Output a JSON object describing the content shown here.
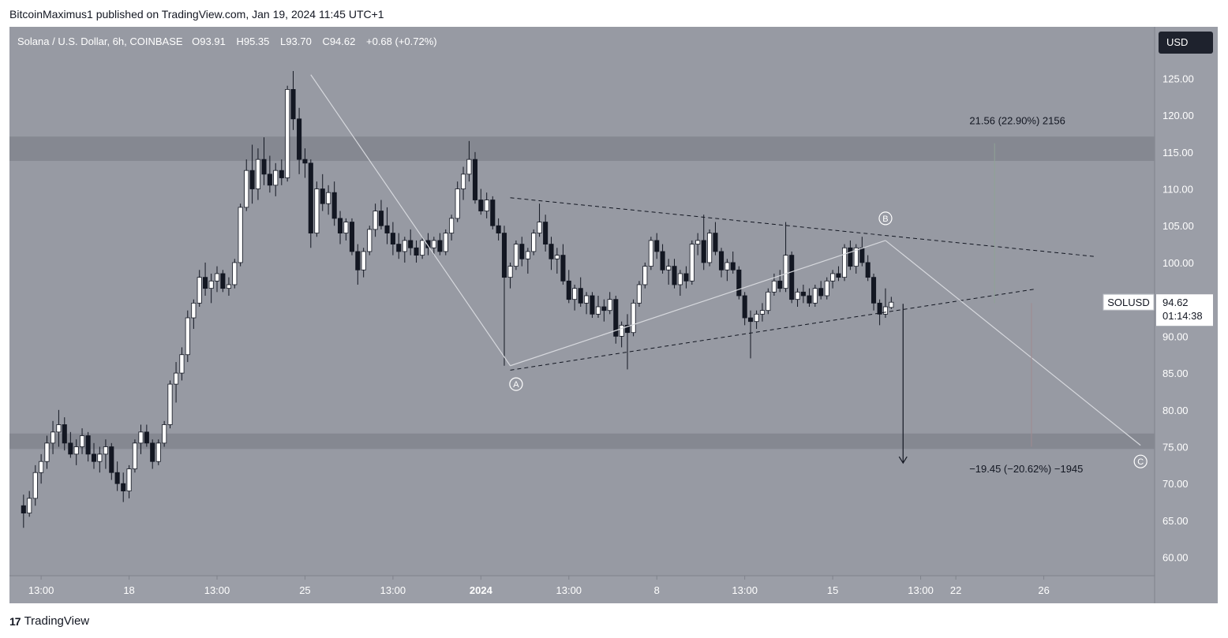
{
  "publisher": "BitcoinMaximus1 published on TradingView.com, Jan 19, 2024 11:45 UTC+1",
  "header": {
    "symbol": "Solana / U.S. Dollar, 6h, COINBASE",
    "open_key": "O",
    "open": "93.91",
    "high_key": "H",
    "high": "95.35",
    "low_key": "L",
    "low": "93.70",
    "close_key": "C",
    "close": "94.62",
    "change": "+0.68 (+0.72%)"
  },
  "currency": "USD",
  "footer": {
    "logo_mark": "17",
    "logo_text": "TradingView"
  },
  "colors": {
    "pane": "#979aa3",
    "axis_bg": "#9b9ea7",
    "zone": "#858891",
    "bull": "#ffffff",
    "bear": "#131722",
    "accent": "#1e222d"
  },
  "chart_data": {
    "type": "candlestick",
    "ylim": [
      57.5,
      132
    ],
    "y_ticks": [
      "60.00",
      "65.00",
      "70.00",
      "75.00",
      "80.00",
      "85.00",
      "90.00",
      "95.00",
      "100.00",
      "105.00",
      "110.00",
      "115.00",
      "120.00",
      "125.00"
    ],
    "x_ticks": [
      {
        "label": "13:00",
        "x": 1,
        "bold": false
      },
      {
        "label": "18",
        "x": 6,
        "bold": false
      },
      {
        "label": "13:00",
        "x": 11,
        "bold": false
      },
      {
        "label": "25",
        "x": 16,
        "bold": false
      },
      {
        "label": "13:00",
        "x": 21,
        "bold": false
      },
      {
        "label": "2024",
        "x": 26,
        "bold": true
      },
      {
        "label": "13:00",
        "x": 31,
        "bold": false
      },
      {
        "label": "8",
        "x": 36,
        "bold": false
      },
      {
        "label": "13:00",
        "x": 41,
        "bold": false
      },
      {
        "label": "15",
        "x": 46,
        "bold": false
      },
      {
        "label": "13:00",
        "x": 51,
        "bold": false
      },
      {
        "label": "22",
        "x": 53,
        "bold": false
      },
      {
        "label": "26",
        "x": 58,
        "bold": false
      }
    ],
    "x_range": [
      -0.8,
      64.3
    ],
    "candles": [
      [
        0,
        67.0,
        68.5,
        64.0,
        66.0
      ],
      [
        0.33,
        66.0,
        69.0,
        65.5,
        68.0
      ],
      [
        0.67,
        68.0,
        72.5,
        67.0,
        71.5
      ],
      [
        1,
        71.5,
        74.0,
        70.0,
        73.0
      ],
      [
        1.33,
        73.0,
        76.5,
        72.0,
        75.5
      ],
      [
        1.67,
        75.5,
        78.5,
        74.0,
        77.0
      ],
      [
        2,
        77.0,
        80.0,
        75.0,
        78.0
      ],
      [
        2.33,
        78.0,
        79.0,
        74.5,
        75.5
      ],
      [
        2.67,
        75.5,
        77.0,
        73.5,
        74.0
      ],
      [
        3,
        74.0,
        76.0,
        72.5,
        75.0
      ],
      [
        3.33,
        75.0,
        77.5,
        74.0,
        76.5
      ],
      [
        3.67,
        76.5,
        77.0,
        73.0,
        74.0
      ],
      [
        4,
        74.0,
        75.5,
        72.0,
        73.0
      ],
      [
        4.33,
        73.0,
        75.0,
        71.5,
        74.0
      ],
      [
        4.67,
        74.0,
        76.0,
        72.0,
        75.0
      ],
      [
        5,
        75.0,
        75.5,
        70.5,
        71.5
      ],
      [
        5.33,
        71.5,
        73.0,
        69.0,
        70.0
      ],
      [
        5.67,
        70.0,
        71.5,
        67.5,
        69.0
      ],
      [
        6,
        69.0,
        72.5,
        68.0,
        72.0
      ],
      [
        6.33,
        72.0,
        76.0,
        71.5,
        75.5
      ],
      [
        6.67,
        75.5,
        78.0,
        74.0,
        77.0
      ],
      [
        7,
        77.0,
        78.0,
        75.0,
        75.5
      ],
      [
        7.33,
        75.5,
        76.0,
        72.0,
        73.0
      ],
      [
        7.67,
        73.0,
        76.0,
        72.5,
        75.5
      ],
      [
        8,
        75.5,
        78.5,
        75.0,
        78.0
      ],
      [
        8.33,
        78.0,
        84.0,
        77.5,
        83.5
      ],
      [
        8.67,
        83.5,
        86.5,
        81.0,
        85.0
      ],
      [
        9,
        85.0,
        88.5,
        84.0,
        87.5
      ],
      [
        9.33,
        87.5,
        93.5,
        86.5,
        92.5
      ],
      [
        9.67,
        92.5,
        95.0,
        91.0,
        94.5
      ],
      [
        10,
        94.5,
        99.0,
        94.0,
        98.0
      ],
      [
        10.33,
        98.0,
        100.0,
        95.5,
        96.5
      ],
      [
        10.67,
        96.5,
        98.5,
        94.5,
        97.5
      ],
      [
        11,
        97.5,
        99.5,
        96.0,
        98.5
      ],
      [
        11.33,
        98.5,
        99.0,
        96.0,
        96.5
      ],
      [
        11.67,
        96.5,
        98.0,
        95.5,
        97.0
      ],
      [
        12,
        97.0,
        100.5,
        96.5,
        100.0
      ],
      [
        12.33,
        100.0,
        108.0,
        99.5,
        107.5
      ],
      [
        12.67,
        107.5,
        114.0,
        107.0,
        112.5
      ],
      [
        13,
        112.5,
        116.0,
        108.0,
        110.0
      ],
      [
        13.33,
        110.0,
        115.5,
        108.5,
        114.0
      ],
      [
        13.67,
        114.0,
        117.0,
        110.5,
        112.0
      ],
      [
        14,
        112.0,
        114.5,
        109.5,
        110.5
      ],
      [
        14.33,
        110.5,
        113.5,
        109.0,
        112.5
      ],
      [
        14.67,
        112.5,
        114.0,
        110.5,
        111.5
      ],
      [
        15,
        111.5,
        124.0,
        111.0,
        123.5
      ],
      [
        15.33,
        123.5,
        126.0,
        118.0,
        119.5
      ],
      [
        15.67,
        119.5,
        121.0,
        112.0,
        114.0
      ],
      [
        16,
        114.0,
        115.5,
        111.5,
        113.5
      ],
      [
        16.33,
        113.5,
        114.0,
        102.0,
        104.0
      ],
      [
        16.67,
        104.0,
        111.0,
        103.5,
        110.0
      ],
      [
        17,
        110.0,
        112.0,
        107.0,
        108.0
      ],
      [
        17.33,
        108.0,
        110.5,
        106.5,
        109.5
      ],
      [
        17.67,
        109.5,
        111.0,
        105.0,
        106.0
      ],
      [
        18,
        106.0,
        107.0,
        102.5,
        104.0
      ],
      [
        18.33,
        104.0,
        106.0,
        103.0,
        105.5
      ],
      [
        18.67,
        105.5,
        106.0,
        101.0,
        101.5
      ],
      [
        19,
        101.5,
        102.5,
        97.0,
        99.0
      ],
      [
        19.33,
        99.0,
        102.0,
        98.0,
        101.5
      ],
      [
        19.67,
        101.5,
        105.0,
        101.0,
        104.5
      ],
      [
        20,
        104.5,
        108.0,
        103.5,
        107.0
      ],
      [
        20.33,
        107.0,
        108.5,
        104.5,
        105.0
      ],
      [
        20.67,
        105.0,
        107.5,
        102.5,
        104.0
      ],
      [
        21,
        104.0,
        105.5,
        101.0,
        102.5
      ],
      [
        21.33,
        102.5,
        104.0,
        100.5,
        101.5
      ],
      [
        21.67,
        101.5,
        103.5,
        100.0,
        103.0
      ],
      [
        22,
        103.0,
        104.5,
        101.0,
        102.0
      ],
      [
        22.33,
        102.0,
        103.0,
        100.0,
        101.0
      ],
      [
        22.67,
        101.0,
        103.5,
        100.5,
        103.0
      ],
      [
        23,
        103.0,
        104.0,
        101.0,
        102.0
      ],
      [
        23.33,
        102.0,
        103.5,
        101.0,
        103.0
      ],
      [
        23.67,
        103.0,
        104.0,
        101.0,
        101.5
      ],
      [
        24,
        101.5,
        104.5,
        101.0,
        104.0
      ],
      [
        24.33,
        104.0,
        106.5,
        103.0,
        106.0
      ],
      [
        24.67,
        106.0,
        111.0,
        105.5,
        110.0
      ],
      [
        25,
        110.0,
        113.0,
        108.5,
        112.0
      ],
      [
        25.33,
        112.0,
        116.5,
        111.0,
        114.0
      ],
      [
        25.67,
        114.0,
        115.0,
        108.0,
        108.5
      ],
      [
        26,
        108.5,
        110.0,
        106.5,
        107.0
      ],
      [
        26.33,
        107.0,
        109.5,
        106.0,
        108.5
      ],
      [
        26.67,
        108.5,
        109.0,
        104.5,
        105.0
      ],
      [
        27,
        105.0,
        106.0,
        103.0,
        104.0
      ],
      [
        27.33,
        104.0,
        105.0,
        86.0,
        98.0
      ],
      [
        27.67,
        98.0,
        100.0,
        96.5,
        99.5
      ],
      [
        28,
        99.5,
        103.0,
        99.0,
        102.5
      ],
      [
        28.33,
        102.5,
        103.5,
        99.5,
        100.5
      ],
      [
        28.67,
        100.5,
        102.0,
        98.5,
        101.5
      ],
      [
        29,
        101.5,
        104.5,
        101.0,
        104.0
      ],
      [
        29.33,
        104.0,
        108.0,
        103.5,
        105.5
      ],
      [
        29.67,
        105.5,
        106.5,
        101.5,
        102.5
      ],
      [
        30,
        102.5,
        103.5,
        99.0,
        100.5
      ],
      [
        30.33,
        100.5,
        102.0,
        98.5,
        101.0
      ],
      [
        30.67,
        101.0,
        102.5,
        97.0,
        97.5
      ],
      [
        31,
        97.5,
        99.0,
        94.5,
        95.0
      ],
      [
        31.33,
        95.0,
        97.0,
        93.5,
        96.5
      ],
      [
        31.67,
        96.5,
        98.0,
        94.0,
        94.5
      ],
      [
        32,
        94.5,
        96.0,
        93.0,
        95.5
      ],
      [
        32.33,
        95.5,
        96.0,
        92.5,
        93.0
      ],
      [
        32.67,
        93.0,
        95.5,
        92.5,
        94.0
      ],
      [
        33,
        94.0,
        95.0,
        92.0,
        93.5
      ],
      [
        33.33,
        93.5,
        96.0,
        93.0,
        95.0
      ],
      [
        33.67,
        95.0,
        95.5,
        89.0,
        90.0
      ],
      [
        34,
        90.0,
        92.0,
        88.5,
        91.5
      ],
      [
        34.33,
        91.5,
        93.0,
        85.5,
        90.5
      ],
      [
        34.67,
        90.5,
        95.0,
        90.0,
        94.5
      ],
      [
        35,
        94.5,
        97.5,
        94.0,
        97.0
      ],
      [
        35.33,
        97.0,
        100.0,
        96.5,
        99.5
      ],
      [
        35.67,
        99.5,
        103.5,
        99.0,
        103.0
      ],
      [
        36,
        103.0,
        104.0,
        100.5,
        101.5
      ],
      [
        36.33,
        101.5,
        102.5,
        98.5,
        99.0
      ],
      [
        36.67,
        99.0,
        100.5,
        97.0,
        99.5
      ],
      [
        37,
        99.5,
        100.5,
        96.5,
        97.0
      ],
      [
        37.33,
        97.0,
        99.0,
        95.5,
        98.5
      ],
      [
        37.67,
        98.5,
        99.5,
        96.5,
        97.5
      ],
      [
        38,
        97.5,
        103.0,
        97.0,
        102.5
      ],
      [
        38.33,
        102.5,
        104.0,
        101.0,
        103.0
      ],
      [
        38.67,
        103.0,
        106.5,
        99.0,
        100.0
      ],
      [
        39,
        100.0,
        104.5,
        99.5,
        104.0
      ],
      [
        39.33,
        104.0,
        105.5,
        101.0,
        101.5
      ],
      [
        39.67,
        101.5,
        102.0,
        98.0,
        99.0
      ],
      [
        40,
        99.0,
        100.5,
        97.5,
        100.0
      ],
      [
        40.33,
        100.0,
        101.5,
        98.5,
        99.0
      ],
      [
        40.67,
        99.0,
        99.5,
        95.0,
        95.5
      ],
      [
        41,
        95.5,
        96.0,
        91.5,
        92.5
      ],
      [
        41.33,
        92.5,
        93.5,
        87.0,
        92.0
      ],
      [
        41.67,
        92.0,
        93.5,
        91.0,
        93.0
      ],
      [
        42,
        93.0,
        94.5,
        92.0,
        93.5
      ],
      [
        42.33,
        93.5,
        96.5,
        93.0,
        96.0
      ],
      [
        42.67,
        96.0,
        98.5,
        95.5,
        97.5
      ],
      [
        43,
        97.5,
        99.0,
        96.0,
        96.5
      ],
      [
        43.33,
        96.5,
        105.5,
        96.0,
        101.0
      ],
      [
        43.67,
        101.0,
        101.5,
        94.5,
        95.0
      ],
      [
        44,
        95.0,
        96.5,
        94.0,
        96.0
      ],
      [
        44.33,
        96.0,
        97.0,
        94.5,
        95.5
      ],
      [
        44.67,
        95.5,
        96.5,
        94.0,
        94.5
      ],
      [
        45,
        94.5,
        97.0,
        94.0,
        96.5
      ],
      [
        45.33,
        96.5,
        97.5,
        95.0,
        95.5
      ],
      [
        45.67,
        95.5,
        98.0,
        95.0,
        97.5
      ],
      [
        46,
        97.5,
        99.0,
        96.5,
        98.5
      ],
      [
        46.33,
        98.5,
        99.5,
        97.5,
        98.0
      ],
      [
        46.67,
        98.0,
        102.5,
        97.5,
        102.0
      ],
      [
        47,
        102.0,
        103.0,
        99.0,
        99.5
      ],
      [
        47.33,
        99.5,
        102.5,
        98.5,
        102.0
      ],
      [
        47.67,
        102.0,
        103.5,
        99.5,
        100.0
      ],
      [
        48,
        100.0,
        101.0,
        97.5,
        98.0
      ],
      [
        48.33,
        98.0,
        98.5,
        93.5,
        94.5
      ],
      [
        48.67,
        94.5,
        95.0,
        91.5,
        93.0
      ],
      [
        49,
        93.0,
        96.5,
        92.5,
        94.0
      ],
      [
        49.33,
        93.91,
        95.35,
        93.7,
        94.62
      ]
    ],
    "last_price": "94.62",
    "countdown": "01:14:38",
    "price_label": "SOLUSD",
    "zones": [
      {
        "from": 113.8,
        "to": 117.1
      },
      {
        "from": 74.7,
        "to": 76.8
      }
    ],
    "pattern_lines": [
      {
        "style": "dashed",
        "from": [
          27.67,
          108.8
        ],
        "to": [
          61.0,
          100.8
        ]
      },
      {
        "style": "dashed",
        "from": [
          27.67,
          85.4
        ],
        "to": [
          57.5,
          96.4
        ]
      }
    ],
    "wave_path": [
      [
        16.33,
        125.5
      ],
      [
        27.67,
        86.0
      ],
      [
        49.0,
        103.0
      ],
      [
        63.5,
        75.2
      ]
    ],
    "wave_labels": [
      {
        "label": "A",
        "x": 28.0,
        "y": 83.5
      },
      {
        "label": "B",
        "x": 49.0,
        "y": 106.0
      },
      {
        "label": "C",
        "x": 63.5,
        "y": 73.0
      }
    ],
    "measure_up": {
      "x": 55.2,
      "from": 94.5,
      "to": 116.2,
      "label": "21.56 (22.90%) 2156",
      "label_x": 56.5,
      "label_y": 118.8
    },
    "measure_down": {
      "x": 57.3,
      "from": 94.5,
      "to": 75.0,
      "label": "−19.45 (−20.62%) −1945",
      "label_x": 57.0,
      "label_y": 71.5
    },
    "target_arrow": {
      "x": 50.0,
      "from": 94.4,
      "to": 72.8
    }
  }
}
